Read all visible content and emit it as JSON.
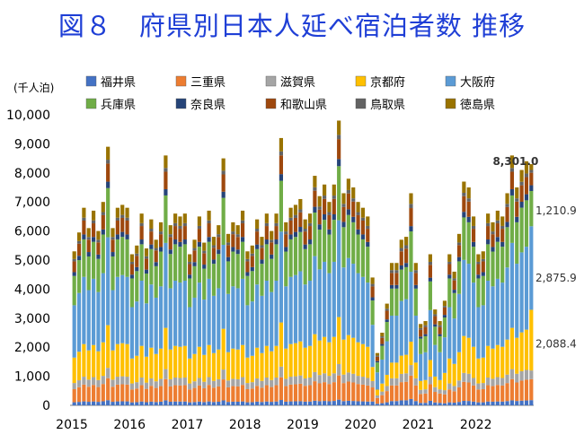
{
  "title": "図８　府県別日本人延べ宿泊者数 推移",
  "chart_data": {
    "type": "bar",
    "stacked": true,
    "unit_label": "(千人泊)",
    "ylim": [
      0,
      10000
    ],
    "yticks": [
      0,
      1000,
      2000,
      3000,
      4000,
      5000,
      6000,
      7000,
      8000,
      9000,
      10000
    ],
    "ytick_labels": [
      "0",
      "1,000",
      "2,000",
      "3,000",
      "4,000",
      "5,000",
      "6,000",
      "7,000",
      "8,000",
      "9,000",
      "10,000"
    ],
    "x_year_labels": [
      "2015",
      "2016",
      "2017",
      "2018",
      "2019",
      "2020",
      "2021",
      "2022"
    ],
    "legend_placement": "top, two rows",
    "grid": false,
    "series": [
      {
        "name": "福井県",
        "color": "#4472C4"
      },
      {
        "name": "三重県",
        "color": "#ED7D31"
      },
      {
        "name": "滋賀県",
        "color": "#A5A5A5"
      },
      {
        "name": "京都府",
        "color": "#FFC000"
      },
      {
        "name": "大阪府",
        "color": "#5B9BD5"
      },
      {
        "name": "兵庫県",
        "color": "#70AD47"
      },
      {
        "name": "奈良県",
        "color": "#264478"
      },
      {
        "name": "和歌山県",
        "color": "#9E480E"
      },
      {
        "name": "鳥取県",
        "color": "#636363"
      },
      {
        "name": "徳島県",
        "color": "#997300"
      }
    ],
    "monthly_totals": [
      5300,
      5950,
      6800,
      6100,
      6700,
      6000,
      7000,
      8900,
      6100,
      6800,
      6900,
      6800,
      5200,
      5500,
      6600,
      5400,
      6400,
      5700,
      6300,
      8600,
      6200,
      6600,
      6500,
      6600,
      5200,
      5700,
      6500,
      5600,
      6700,
      5800,
      6200,
      8500,
      5900,
      6300,
      6200,
      6700,
      5300,
      5500,
      6400,
      5800,
      6600,
      6000,
      6600,
      9200,
      6300,
      6800,
      6900,
      7100,
      6400,
      6600,
      7900,
      7200,
      7600,
      7000,
      7600,
      9800,
      7300,
      7800,
      7500,
      7000,
      6800,
      6500,
      4400,
      1800,
      2500,
      3500,
      4900,
      4900,
      5700,
      5800,
      7300,
      4900,
      2800,
      2900,
      5200,
      3300,
      2900,
      3600,
      5200,
      4600,
      5900,
      7700,
      7500,
      6500,
      5200,
      5300,
      6600,
      6300,
      6700,
      6500,
      7300,
      8600,
      7500,
      8100,
      8400,
      8301
    ],
    "shares": [
      0.02,
      0.085,
      0.04,
      0.165,
      0.34,
      0.19,
      0.025,
      0.07,
      0.015,
      0.05
    ],
    "annotations": {
      "total_label": "8,301.0",
      "hyogo_label": "1,210.9",
      "osaka_label": "2,875.9",
      "kyoto_label": "2,088.4"
    },
    "last_bar_breakdown": {
      "福井県": 180,
      "三重県": 720,
      "滋賀県": 300,
      "京都府": 2088.4,
      "大阪府": 2875.9,
      "兵庫県": 1210.9,
      "奈良県": 200,
      "和歌山県": 430,
      "鳥取県": 96.8,
      "徳島県": 199
    }
  }
}
